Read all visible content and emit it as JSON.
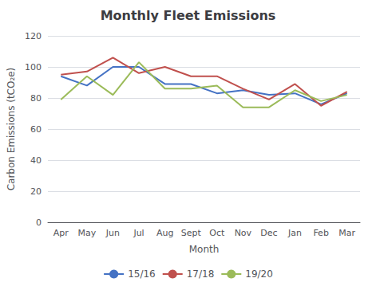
{
  "chart_data": {
    "type": "line",
    "title": "Monthly Fleet Emissions",
    "xlabel": "Month",
    "ylabel": "Carbon Emissions (tCO₂e)",
    "categories": [
      "Apr",
      "May",
      "Jun",
      "Jul",
      "Aug",
      "Sept",
      "Oct",
      "Nov",
      "Dec",
      "Jan",
      "Feb",
      "Mar"
    ],
    "series": [
      {
        "name": "15/16",
        "color": "#4472C4",
        "values": [
          94,
          88,
          100,
          100,
          89,
          89,
          83,
          85,
          82,
          83,
          76,
          83
        ]
      },
      {
        "name": "17/18",
        "color": "#C0504D",
        "values": [
          95,
          97,
          106,
          96,
          100,
          94,
          94,
          86,
          79,
          89,
          75,
          84
        ]
      },
      {
        "name": "19/20",
        "color": "#9BBB59",
        "values": [
          79,
          94,
          82,
          103,
          86,
          86,
          88,
          74,
          74,
          85,
          78,
          82
        ]
      }
    ],
    "ylim": [
      0,
      120
    ],
    "yticks": [
      0,
      20,
      40,
      60,
      80,
      100,
      120
    ],
    "grid": true,
    "legend": "bottom"
  }
}
